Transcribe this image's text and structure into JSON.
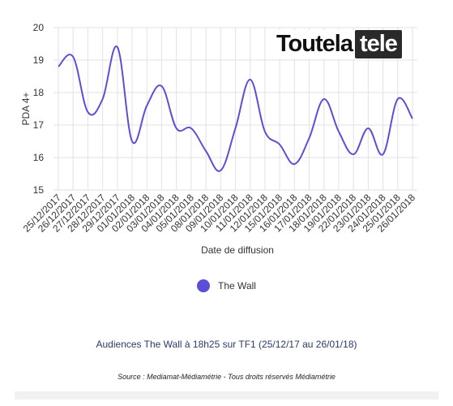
{
  "logo": {
    "main": "Toutela",
    "box": "tele"
  },
  "legend": {
    "label": "The Wall",
    "color": "#5b4fd6"
  },
  "caption": "Audiences The Wall à 18h25 sur TF1  (25/12/17 au 26/01/18)",
  "source": "Source : Mediamat-Médiamétrie - Tous droits réservés Médiamétrie",
  "chart_data": {
    "type": "line",
    "xlabel": "Date de diffusion",
    "ylabel": "PDA 4+",
    "ylim": [
      15,
      20
    ],
    "yticks": [
      15,
      16,
      17,
      18,
      19,
      20
    ],
    "grid": true,
    "categories": [
      "25/12/2017",
      "26/12/2017",
      "27/12/2017",
      "28/12/2017",
      "29/12/2017",
      "01/01/2018",
      "02/01/2018",
      "03/01/2018",
      "04/01/2018",
      "05/01/2018",
      "08/01/2018",
      "09/01/2018",
      "10/01/2018",
      "11/01/2018",
      "12/01/2018",
      "15/01/2018",
      "16/01/2018",
      "17/01/2018",
      "18/01/2018",
      "19/01/2018",
      "22/01/2018",
      "23/01/2018",
      "24/01/2018",
      "25/01/2018",
      "26/01/2018"
    ],
    "series": [
      {
        "name": "The Wall",
        "color": "#5b4fd6",
        "values": [
          18.8,
          19.1,
          17.4,
          17.8,
          19.4,
          16.5,
          17.6,
          18.2,
          16.9,
          16.9,
          16.2,
          15.6,
          16.9,
          18.4,
          16.8,
          16.4,
          15.8,
          16.6,
          17.8,
          16.8,
          16.1,
          16.9,
          16.1,
          17.8,
          17.2
        ]
      }
    ]
  }
}
